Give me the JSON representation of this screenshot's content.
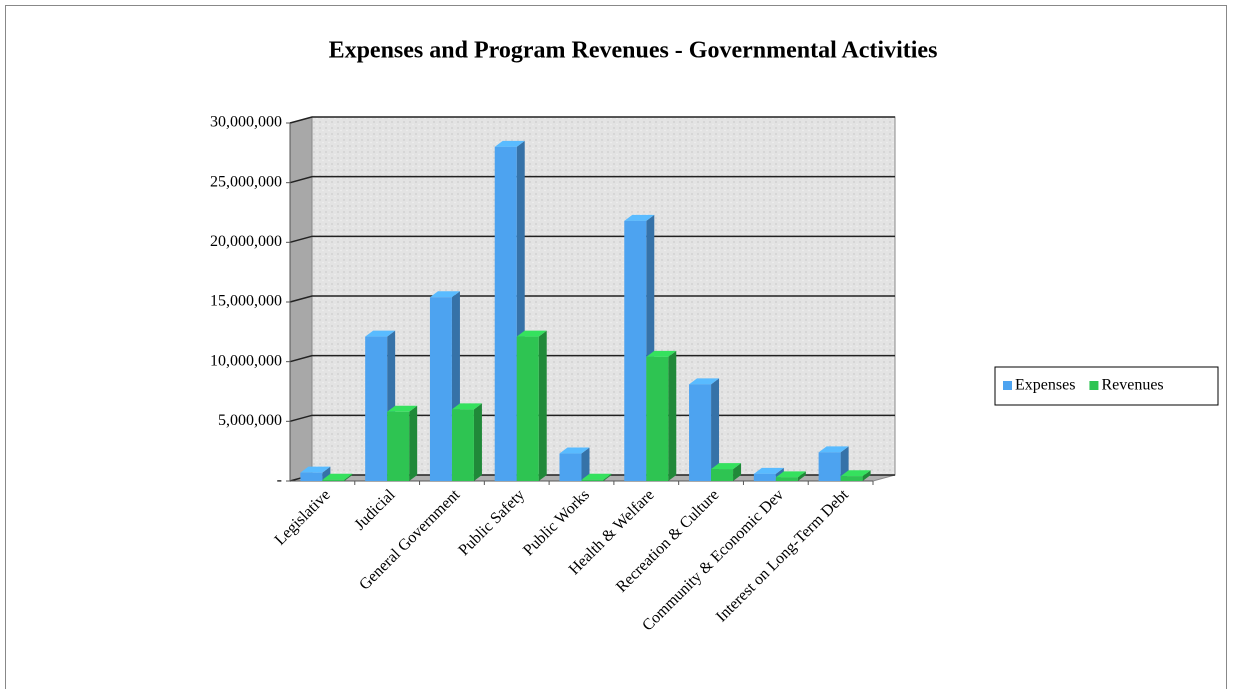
{
  "chart_data": {
    "type": "bar3d",
    "title": "Expenses and Program Revenues - Governmental Activities",
    "categories": [
      "Legislative",
      "Judicial",
      "General Government",
      "Public Safety",
      "Public Works",
      "Health & Welfare",
      "Recreation & Culture",
      "Community & Economic Dev",
      "Interest on Long-Term Debt"
    ],
    "series": [
      {
        "name": "Expenses",
        "color": "#4da3f0",
        "values": [
          700000,
          12100000,
          15400000,
          28000000,
          2300000,
          21800000,
          8100000,
          600000,
          2400000
        ]
      },
      {
        "name": "Revenues",
        "color": "#2ec452",
        "values": [
          100000,
          5800000,
          6000000,
          12100000,
          100000,
          10400000,
          1000000,
          300000,
          400000
        ]
      }
    ],
    "ylim": [
      0,
      30000000
    ],
    "yticks": [
      {
        "value": 0,
        "label": "-"
      },
      {
        "value": 5000000,
        "label": "5,000,000"
      },
      {
        "value": 10000000,
        "label": "10,000,000"
      },
      {
        "value": 15000000,
        "label": "15,000,000"
      },
      {
        "value": 20000000,
        "label": "20,000,000"
      },
      {
        "value": 25000000,
        "label": "25,000,000"
      },
      {
        "value": 30000000,
        "label": "30,000,000"
      }
    ],
    "grid": true,
    "legend": "right"
  }
}
